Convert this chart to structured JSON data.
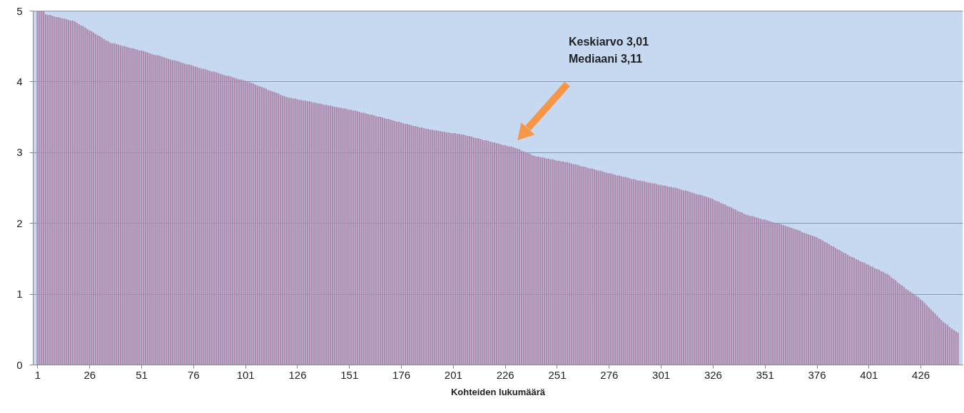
{
  "chart_data": {
    "type": "bar",
    "xlabel": "Kohteiden lukumäärä",
    "color": "#ad8aae",
    "x": [
      1,
      2,
      3,
      4,
      5,
      6,
      7,
      8,
      9,
      10,
      11,
      12,
      13,
      14,
      15,
      16,
      17,
      18,
      19,
      20,
      21,
      22,
      23,
      24,
      25,
      26,
      27,
      28,
      29,
      30,
      31,
      32,
      33,
      34,
      35,
      36,
      37,
      38,
      39,
      40,
      41,
      42,
      43,
      44,
      45,
      46,
      47,
      48,
      49,
      50,
      51,
      52,
      53,
      54,
      55,
      56,
      57,
      58,
      59,
      60,
      61,
      62,
      63,
      64,
      65,
      66,
      67,
      68,
      69,
      70,
      71,
      72,
      73,
      74,
      75,
      76,
      77,
      78,
      79,
      80,
      81,
      82,
      83,
      84,
      85,
      86,
      87,
      88,
      89,
      90,
      91,
      92,
      93,
      94,
      95,
      96,
      97,
      98,
      99,
      100,
      101,
      102,
      103,
      104,
      105,
      106,
      107,
      108,
      109,
      110,
      111,
      112,
      113,
      114,
      115,
      116,
      117,
      118,
      119,
      120,
      121,
      122,
      123,
      124,
      125,
      126,
      127,
      128,
      129,
      130,
      131,
      132,
      133,
      134,
      135,
      136,
      137,
      138,
      139,
      140,
      141,
      142,
      143,
      144,
      145,
      146,
      147,
      148,
      149,
      150,
      151,
      152,
      153,
      154,
      155,
      156,
      157,
      158,
      159,
      160,
      161,
      162,
      163,
      164,
      165,
      166,
      167,
      168,
      169,
      170,
      171,
      172,
      173,
      174,
      175,
      176,
      177,
      178,
      179,
      180,
      181,
      182,
      183,
      184,
      185,
      186,
      187,
      188,
      189,
      190,
      191,
      192,
      193,
      194,
      195,
      196,
      197,
      198,
      199,
      200,
      201,
      202,
      203,
      204,
      205,
      206,
      207,
      208,
      209,
      210,
      211,
      212,
      213,
      214,
      215,
      216,
      217,
      218,
      219,
      220,
      221,
      222,
      223,
      224,
      225,
      226,
      227,
      228,
      229,
      230,
      231,
      232,
      233,
      234,
      235,
      236,
      237,
      238,
      239,
      240,
      241,
      242,
      243,
      244,
      245,
      246,
      247,
      248,
      249,
      250,
      251,
      252,
      253,
      254,
      255,
      256,
      257,
      258,
      259,
      260,
      261,
      262,
      263,
      264,
      265,
      266,
      267,
      268,
      269,
      270,
      271,
      272,
      273,
      274,
      275,
      276,
      277,
      278,
      279,
      280,
      281,
      282,
      283,
      284,
      285,
      286,
      287,
      288,
      289,
      290,
      291,
      292,
      293,
      294,
      295,
      296,
      297,
      298,
      299,
      300,
      301,
      302,
      303,
      304,
      305,
      306,
      307,
      308,
      309,
      310,
      311,
      312,
      313,
      314,
      315,
      316,
      317,
      318,
      319,
      320,
      321,
      322,
      323,
      324,
      325,
      326,
      327,
      328,
      329,
      330,
      331,
      332,
      333,
      334,
      335,
      336,
      337,
      338,
      339,
      340,
      341,
      342,
      343,
      344,
      345,
      346,
      347,
      348,
      349,
      350,
      351,
      352,
      353,
      354,
      355,
      356,
      357,
      358,
      359,
      360,
      361,
      362,
      363,
      364,
      365,
      366,
      367,
      368,
      369,
      370,
      371,
      372,
      373,
      374,
      375,
      376,
      377,
      378,
      379,
      380,
      381,
      382,
      383,
      384,
      385,
      386,
      387,
      388,
      389,
      390,
      391,
      392,
      393,
      394,
      395,
      396,
      397,
      398,
      399,
      400,
      401,
      402,
      403,
      404,
      405,
      406,
      407,
      408,
      409,
      410,
      411,
      412,
      413,
      414,
      415,
      416,
      417,
      418,
      419,
      420,
      421,
      422,
      423,
      424,
      425,
      426,
      427,
      428,
      429,
      430,
      431,
      432,
      433,
      434,
      435,
      436,
      437,
      438,
      439,
      440,
      441,
      442,
      443,
      444
    ],
    "values": [
      5.0,
      5.0,
      5.0,
      5.0,
      4.95,
      4.94,
      4.94,
      4.93,
      4.92,
      4.91,
      4.91,
      4.9,
      4.89,
      4.89,
      4.88,
      4.87,
      4.86,
      4.86,
      4.85,
      4.83,
      4.81,
      4.79,
      4.78,
      4.76,
      4.74,
      4.72,
      4.71,
      4.69,
      4.67,
      4.65,
      4.64,
      4.62,
      4.6,
      4.58,
      4.57,
      4.55,
      4.54,
      4.54,
      4.53,
      4.52,
      4.51,
      4.5,
      4.5,
      4.49,
      4.48,
      4.47,
      4.47,
      4.46,
      4.45,
      4.44,
      4.44,
      4.43,
      4.42,
      4.41,
      4.4,
      4.39,
      4.38,
      4.37,
      4.37,
      4.36,
      4.35,
      4.34,
      4.33,
      4.32,
      4.31,
      4.3,
      4.3,
      4.29,
      4.28,
      4.27,
      4.26,
      4.25,
      4.24,
      4.24,
      4.23,
      4.22,
      4.21,
      4.2,
      4.19,
      4.18,
      4.18,
      4.17,
      4.16,
      4.15,
      4.14,
      4.14,
      4.13,
      4.12,
      4.11,
      4.1,
      4.09,
      4.08,
      4.08,
      4.07,
      4.06,
      4.05,
      4.04,
      4.03,
      4.03,
      4.02,
      4.01,
      4.0,
      3.99,
      3.98,
      3.97,
      3.95,
      3.94,
      3.93,
      3.92,
      3.91,
      3.9,
      3.88,
      3.87,
      3.86,
      3.85,
      3.84,
      3.83,
      3.81,
      3.8,
      3.79,
      3.78,
      3.77,
      3.77,
      3.76,
      3.76,
      3.75,
      3.74,
      3.74,
      3.73,
      3.73,
      3.72,
      3.72,
      3.71,
      3.7,
      3.7,
      3.69,
      3.69,
      3.68,
      3.67,
      3.67,
      3.66,
      3.66,
      3.65,
      3.64,
      3.64,
      3.63,
      3.63,
      3.62,
      3.62,
      3.61,
      3.6,
      3.6,
      3.59,
      3.59,
      3.58,
      3.57,
      3.56,
      3.56,
      3.55,
      3.54,
      3.53,
      3.53,
      3.52,
      3.51,
      3.5,
      3.5,
      3.49,
      3.48,
      3.47,
      3.47,
      3.46,
      3.45,
      3.44,
      3.43,
      3.43,
      3.42,
      3.41,
      3.4,
      3.4,
      3.39,
      3.38,
      3.37,
      3.37,
      3.36,
      3.35,
      3.35,
      3.34,
      3.33,
      3.33,
      3.32,
      3.32,
      3.31,
      3.31,
      3.3,
      3.3,
      3.29,
      3.29,
      3.28,
      3.28,
      3.27,
      3.27,
      3.27,
      3.26,
      3.26,
      3.25,
      3.25,
      3.24,
      3.23,
      3.23,
      3.22,
      3.21,
      3.2,
      3.2,
      3.19,
      3.18,
      3.17,
      3.17,
      3.16,
      3.15,
      3.14,
      3.14,
      3.13,
      3.12,
      3.11,
      3.1,
      3.1,
      3.09,
      3.08,
      3.08,
      3.07,
      3.06,
      3.05,
      3.04,
      3.02,
      3.01,
      3.0,
      2.99,
      2.98,
      2.96,
      2.95,
      2.94,
      2.94,
      2.93,
      2.93,
      2.92,
      2.91,
      2.91,
      2.9,
      2.9,
      2.89,
      2.88,
      2.88,
      2.87,
      2.87,
      2.86,
      2.86,
      2.85,
      2.84,
      2.83,
      2.83,
      2.82,
      2.81,
      2.8,
      2.8,
      2.79,
      2.78,
      2.77,
      2.77,
      2.76,
      2.75,
      2.74,
      2.74,
      2.73,
      2.72,
      2.71,
      2.7,
      2.7,
      2.69,
      2.68,
      2.67,
      2.67,
      2.66,
      2.65,
      2.65,
      2.64,
      2.63,
      2.62,
      2.62,
      2.61,
      2.6,
      2.6,
      2.59,
      2.59,
      2.58,
      2.57,
      2.57,
      2.56,
      2.56,
      2.55,
      2.54,
      2.54,
      2.53,
      2.53,
      2.52,
      2.51,
      2.51,
      2.5,
      2.5,
      2.49,
      2.48,
      2.47,
      2.46,
      2.46,
      2.45,
      2.44,
      2.43,
      2.42,
      2.41,
      2.4,
      2.4,
      2.39,
      2.38,
      2.37,
      2.36,
      2.35,
      2.34,
      2.32,
      2.31,
      2.3,
      2.28,
      2.27,
      2.26,
      2.24,
      2.23,
      2.22,
      2.2,
      2.19,
      2.17,
      2.16,
      2.15,
      2.13,
      2.12,
      2.11,
      2.1,
      2.1,
      2.09,
      2.08,
      2.07,
      2.06,
      2.05,
      2.05,
      2.04,
      2.03,
      2.02,
      2.01,
      2.0,
      2.0,
      1.99,
      1.98,
      1.97,
      1.96,
      1.95,
      1.94,
      1.93,
      1.92,
      1.91,
      1.9,
      1.89,
      1.87,
      1.86,
      1.85,
      1.84,
      1.83,
      1.82,
      1.81,
      1.8,
      1.78,
      1.77,
      1.75,
      1.73,
      1.72,
      1.7,
      1.68,
      1.67,
      1.65,
      1.63,
      1.62,
      1.6,
      1.58,
      1.57,
      1.55,
      1.53,
      1.52,
      1.51,
      1.49,
      1.48,
      1.46,
      1.45,
      1.44,
      1.42,
      1.41,
      1.39,
      1.38,
      1.36,
      1.35,
      1.34,
      1.32,
      1.31,
      1.29,
      1.28,
      1.26,
      1.23,
      1.21,
      1.19,
      1.16,
      1.14,
      1.12,
      1.1,
      1.07,
      1.05,
      1.03,
      1.01,
      0.99,
      0.97,
      0.95,
      0.92,
      0.9,
      0.87,
      0.84,
      0.81,
      0.78,
      0.75,
      0.72,
      0.69,
      0.66,
      0.63,
      0.6,
      0.58,
      0.56,
      0.53,
      0.51,
      0.49,
      0.47,
      0.45
    ],
    "xlim": [
      0.5,
      444.5
    ],
    "xticks": [
      1,
      26,
      51,
      76,
      101,
      126,
      151,
      176,
      201,
      226,
      251,
      276,
      301,
      326,
      351,
      376,
      401,
      426
    ],
    "ylim": [
      0,
      5
    ],
    "yticks": [
      0,
      1,
      2,
      3,
      4,
      5
    ],
    "grid": "y",
    "annotations": [
      "Keskiarvo 3,01\nMediaani 3,11"
    ]
  }
}
